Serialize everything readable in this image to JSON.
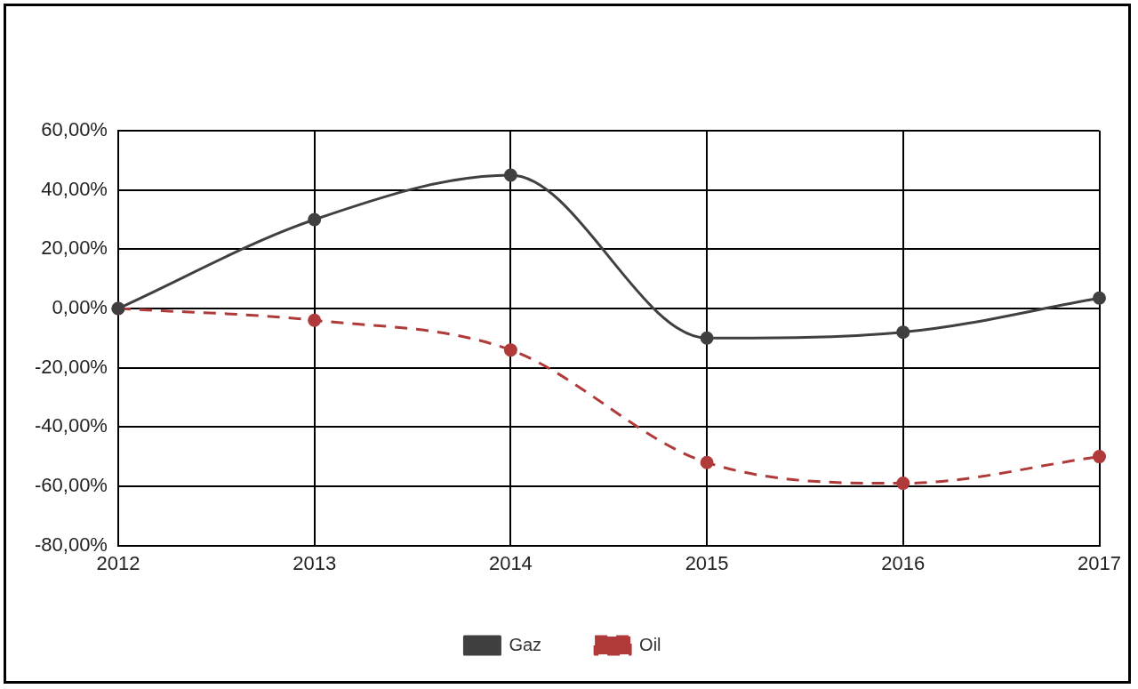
{
  "chart_data": {
    "type": "line",
    "categories": [
      "2012",
      "2013",
      "2014",
      "2015",
      "2016",
      "2017"
    ],
    "series": [
      {
        "name": "Gaz",
        "color": "#404040",
        "values": [
          0,
          30,
          45,
          -10,
          -8,
          3.5
        ],
        "line_style": "solid"
      },
      {
        "name": "Oil",
        "color": "#b03a3a",
        "values": [
          0,
          -4,
          -14,
          -52,
          -59,
          -50
        ],
        "line_style": "dashed"
      }
    ],
    "ylim": [
      -80,
      60
    ],
    "yticks": [
      {
        "value": -80,
        "label": "-80,00%"
      },
      {
        "value": -60,
        "label": "-60,00%"
      },
      {
        "value": -40,
        "label": "-40,00%"
      },
      {
        "value": -20,
        "label": "-20,00%"
      },
      {
        "value": 0,
        "label": "0,00%"
      },
      {
        "value": 20,
        "label": "20,00%"
      },
      {
        "value": 40,
        "label": "40,00%"
      },
      {
        "value": 60,
        "label": "60,00%"
      }
    ],
    "grid": true,
    "legend": "bottom",
    "marker": "circle"
  }
}
